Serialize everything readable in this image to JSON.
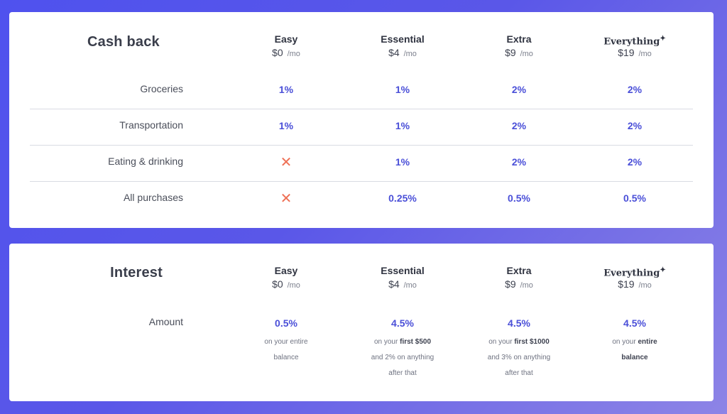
{
  "plans": [
    {
      "name": "Easy",
      "price": "$0",
      "per": "/mo"
    },
    {
      "name": "Essential",
      "price": "$4",
      "per": "/mo"
    },
    {
      "name": "Extra",
      "price": "$9",
      "per": "/mo"
    },
    {
      "name": "Everything",
      "price": "$19",
      "per": "/mo",
      "sparkle": "✦"
    }
  ],
  "cashback": {
    "title": "Cash back",
    "rows": [
      {
        "label": "Groceries",
        "values": [
          "1%",
          "1%",
          "2%",
          "2%"
        ]
      },
      {
        "label": "Transportation",
        "values": [
          "1%",
          "1%",
          "2%",
          "2%"
        ]
      },
      {
        "label": "Eating & drinking",
        "values": [
          "✕",
          "1%",
          "2%",
          "2%"
        ]
      },
      {
        "label": "All purchases",
        "values": [
          "✕",
          "0.25%",
          "0.5%",
          "0.5%"
        ]
      }
    ],
    "cross_color": "#ee7055",
    "accent": "#4a4fd8"
  },
  "interest": {
    "title": "Interest",
    "label": "Amount",
    "cells": [
      {
        "rate": "0.5%",
        "lines": [
          "on your entire",
          "balance"
        ]
      },
      {
        "rate": "4.5%",
        "pre": "on your ",
        "bold": "first $500",
        "lines2": [
          "and 2% on anything",
          "after that"
        ]
      },
      {
        "rate": "4.5%",
        "pre": "on your ",
        "bold": "first $1000",
        "lines2": [
          "and 3% on anything",
          "after that"
        ]
      },
      {
        "rate": "4.5%",
        "pre": "on your ",
        "bold": "entire",
        "bold2": "balance"
      }
    ]
  }
}
